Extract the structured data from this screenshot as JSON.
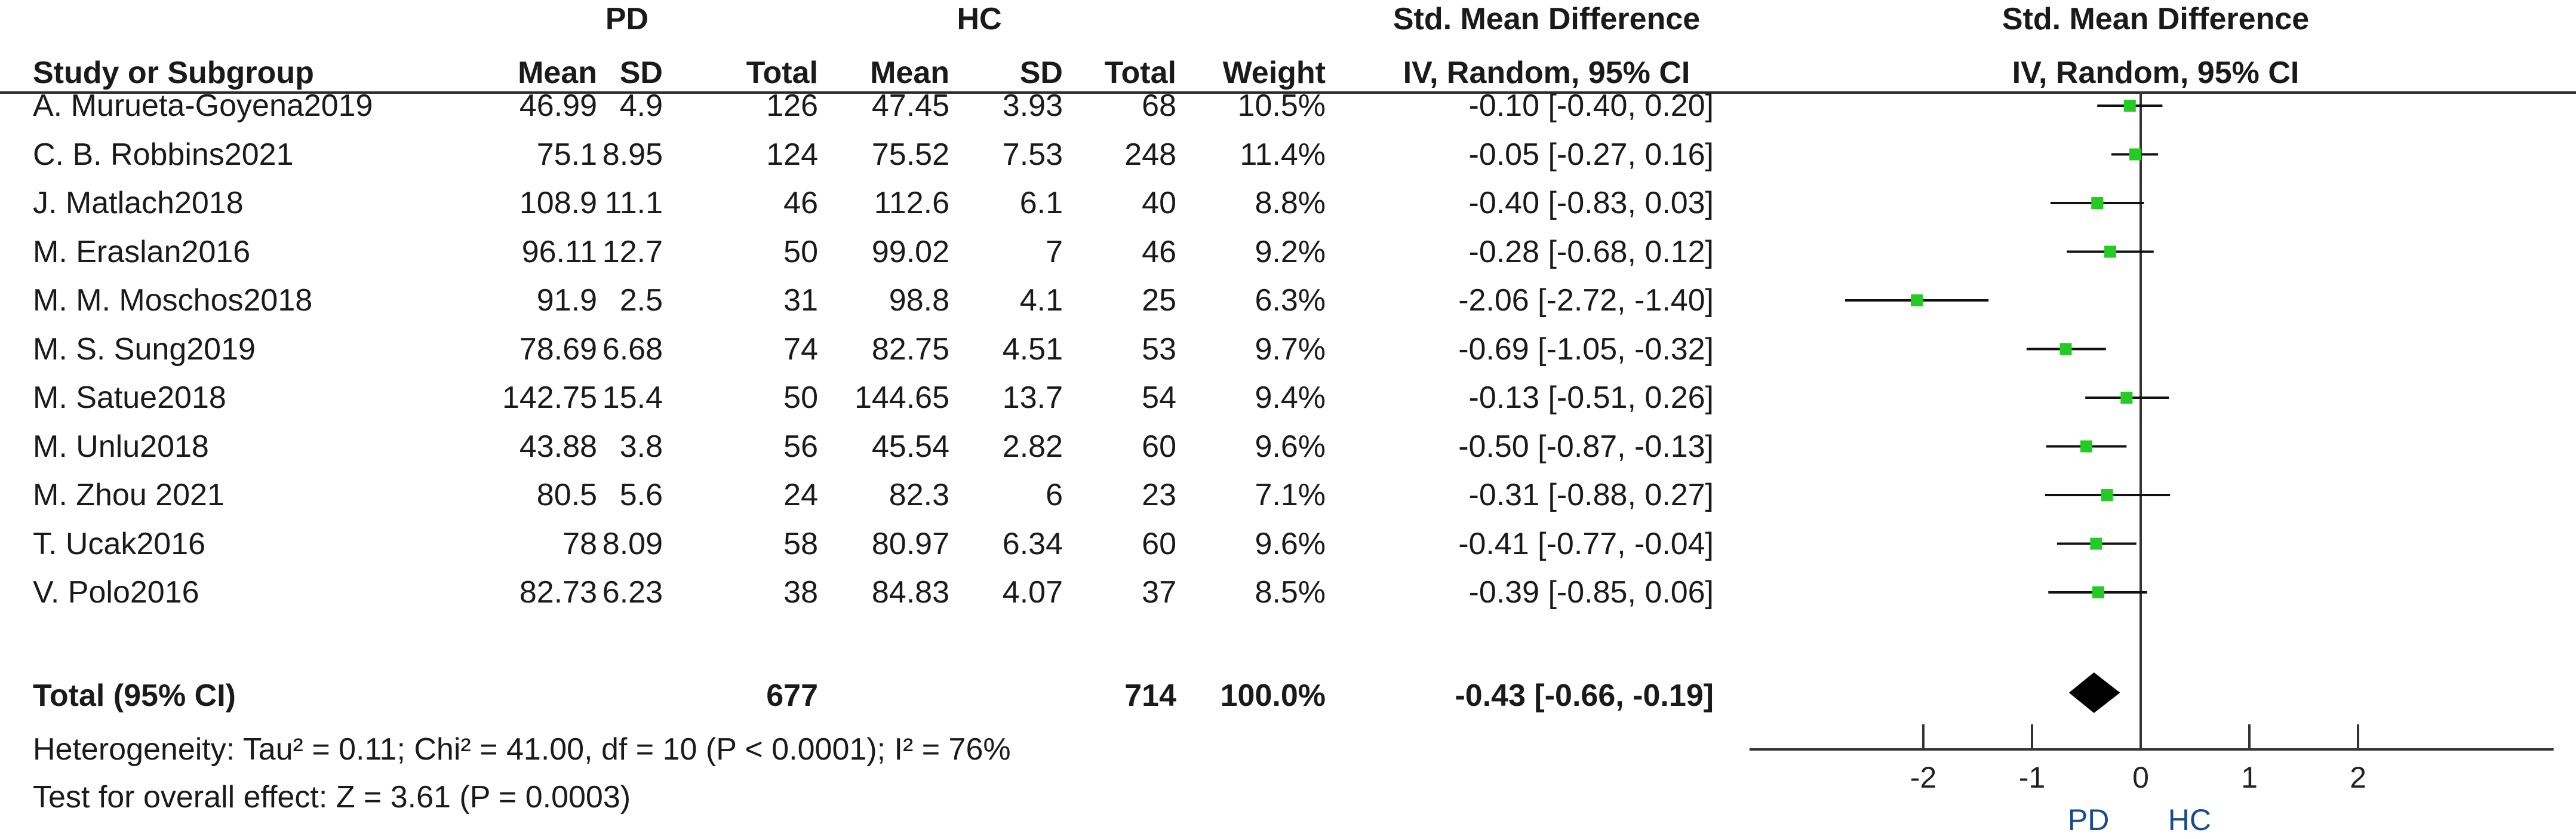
{
  "headers": {
    "group1": "PD",
    "group2": "HC",
    "effect_top": "Std. Mean Difference",
    "effect_bottom": "IV, Random, 95% CI",
    "plot_top": "Std. Mean Difference",
    "plot_bottom": "IV, Random, 95% CI",
    "study": "Study or Subgroup",
    "mean1": "Mean",
    "sd1": "SD",
    "total1": "Total",
    "mean2": "Mean",
    "sd2": "SD",
    "total2": "Total",
    "weight": "Weight"
  },
  "rows": [
    {
      "study": "A. Murueta-Goyena2019",
      "m1": "46.99",
      "s1": "4.9",
      "n1": "126",
      "m2": "47.45",
      "s2": "3.93",
      "n2": "68",
      "w": "10.5%",
      "ci": "-0.10 [-0.40, 0.20]"
    },
    {
      "study": "C. B. Robbins2021",
      "m1": "75.1",
      "s1": "8.95",
      "n1": "124",
      "m2": "75.52",
      "s2": "7.53",
      "n2": "248",
      "w": "11.4%",
      "ci": "-0.05 [-0.27, 0.16]"
    },
    {
      "study": "J. Matlach2018",
      "m1": "108.9",
      "s1": "11.1",
      "n1": "46",
      "m2": "112.6",
      "s2": "6.1",
      "n2": "40",
      "w": "8.8%",
      "ci": "-0.40 [-0.83, 0.03]"
    },
    {
      "study": "M. Eraslan2016",
      "m1": "96.11",
      "s1": "12.7",
      "n1": "50",
      "m2": "99.02",
      "s2": "7",
      "n2": "46",
      "w": "9.2%",
      "ci": "-0.28 [-0.68, 0.12]"
    },
    {
      "study": "M. M. Moschos2018",
      "m1": "91.9",
      "s1": "2.5",
      "n1": "31",
      "m2": "98.8",
      "s2": "4.1",
      "n2": "25",
      "w": "6.3%",
      "ci": "-2.06 [-2.72, -1.40]"
    },
    {
      "study": "M. S. Sung2019",
      "m1": "78.69",
      "s1": "6.68",
      "n1": "74",
      "m2": "82.75",
      "s2": "4.51",
      "n2": "53",
      "w": "9.7%",
      "ci": "-0.69 [-1.05, -0.32]"
    },
    {
      "study": "M. Satue2018",
      "m1": "142.75",
      "s1": "15.4",
      "n1": "50",
      "m2": "144.65",
      "s2": "13.7",
      "n2": "54",
      "w": "9.4%",
      "ci": "-0.13 [-0.51, 0.26]"
    },
    {
      "study": "M. Unlu2018",
      "m1": "43.88",
      "s1": "3.8",
      "n1": "56",
      "m2": "45.54",
      "s2": "2.82",
      "n2": "60",
      "w": "9.6%",
      "ci": "-0.50 [-0.87, -0.13]"
    },
    {
      "study": "M. Zhou 2021",
      "m1": "80.5",
      "s1": "5.6",
      "n1": "24",
      "m2": "82.3",
      "s2": "6",
      "n2": "23",
      "w": "7.1%",
      "ci": "-0.31 [-0.88, 0.27]"
    },
    {
      "study": "T. Ucak2016",
      "m1": "78",
      "s1": "8.09",
      "n1": "58",
      "m2": "80.97",
      "s2": "6.34",
      "n2": "60",
      "w": "9.6%",
      "ci": "-0.41 [-0.77, -0.04]"
    },
    {
      "study": "V. Polo2016",
      "m1": "82.73",
      "s1": "6.23",
      "n1": "38",
      "m2": "84.83",
      "s2": "4.07",
      "n2": "37",
      "w": "8.5%",
      "ci": "-0.39 [-0.85, 0.06]"
    }
  ],
  "total": {
    "label": "Total (95% CI)",
    "n1": "677",
    "n2": "714",
    "w": "100.0%",
    "ci": "-0.43 [-0.66, -0.19]"
  },
  "heterogeneity": "Heterogeneity: Tau² = 0.11; Chi² = 41.00, df = 10 (P < 0.0001); I² = 76%",
  "overall_effect": "Test for overall effect: Z = 3.61 (P = 0.0003)",
  "colors": {
    "point": "#22cc22",
    "line": "#111111",
    "diamond": "#000000"
  },
  "chart_data": {
    "type": "forest",
    "title": "Std. Mean Difference",
    "subtitle": "IV, Random, 95% CI",
    "x_ticks": [
      -2,
      -1,
      0,
      1,
      2
    ],
    "x_tick_labels": [
      "-2",
      "-1",
      "0",
      "1",
      "2"
    ],
    "xlim": [
      -3.6,
      3.8
    ],
    "favours_left": "PD",
    "favours_right": "HC",
    "studies": [
      {
        "name": "A. Murueta-Goyena2019",
        "est": -0.1,
        "lo": -0.4,
        "hi": 0.2
      },
      {
        "name": "C. B. Robbins2021",
        "est": -0.05,
        "lo": -0.27,
        "hi": 0.16
      },
      {
        "name": "J. Matlach2018",
        "est": -0.4,
        "lo": -0.83,
        "hi": 0.03
      },
      {
        "name": "M. Eraslan2016",
        "est": -0.28,
        "lo": -0.68,
        "hi": 0.12
      },
      {
        "name": "M. M. Moschos2018",
        "est": -2.06,
        "lo": -2.72,
        "hi": -1.4
      },
      {
        "name": "M. S. Sung2019",
        "est": -0.69,
        "lo": -1.05,
        "hi": -0.32
      },
      {
        "name": "M. Satue2018",
        "est": -0.13,
        "lo": -0.51,
        "hi": 0.26
      },
      {
        "name": "M. Unlu2018",
        "est": -0.5,
        "lo": -0.87,
        "hi": -0.13
      },
      {
        "name": "M. Zhou 2021",
        "est": -0.31,
        "lo": -0.88,
        "hi": 0.27
      },
      {
        "name": "T. Ucak2016",
        "est": -0.41,
        "lo": -0.77,
        "hi": -0.04
      },
      {
        "name": "V. Polo2016",
        "est": -0.39,
        "lo": -0.85,
        "hi": 0.06
      }
    ],
    "pooled": {
      "est": -0.43,
      "lo": -0.66,
      "hi": -0.19
    }
  }
}
